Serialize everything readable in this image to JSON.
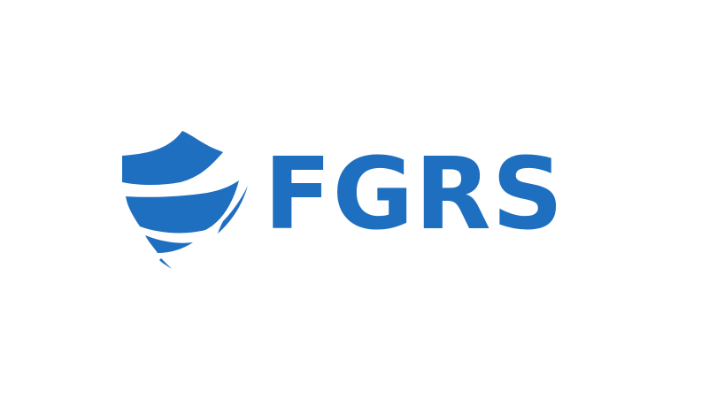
{
  "brand": {
    "name": "FGRS",
    "color": "#1f6fc0",
    "mark_icon": "shield-icon"
  }
}
